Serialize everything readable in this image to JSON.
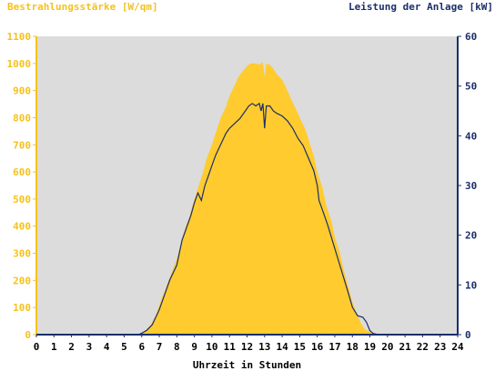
{
  "chart_data": {
    "type": "area",
    "left_axis_label": "Bestrahlungsstärke [W/qm]",
    "right_axis_label": "Leistung der Anlage [kW]",
    "xlabel": "Uhrzeit in Stunden",
    "x_ticks": [
      "0",
      "1",
      "2",
      "3",
      "4",
      "5",
      "6",
      "7",
      "8",
      "9",
      "10",
      "11",
      "12",
      "13",
      "14",
      "15",
      "16",
      "17",
      "18",
      "19",
      "20",
      "21",
      "22",
      "23",
      "24"
    ],
    "y_left_ticks": [
      "0",
      "100",
      "200",
      "300",
      "400",
      "500",
      "600",
      "700",
      "800",
      "900",
      "1000",
      "1100"
    ],
    "y_right_ticks": [
      "0",
      "10",
      "20",
      "30",
      "40",
      "50",
      "60"
    ],
    "xlim": [
      0,
      24
    ],
    "ylim_left": [
      0,
      1100
    ],
    "ylim_right": [
      0,
      60
    ],
    "colors": {
      "irradiance": "#ffcb2f",
      "power": "#1a2f6b",
      "plot_bg": "#dcdcdc",
      "left_axis": "#f5c21c",
      "right_axis": "#1a2f6b"
    },
    "series": [
      {
        "unit": "W/qm",
        "axis": "left",
        "x": [
          0,
          5.8,
          6.0,
          6.2,
          6.5,
          6.8,
          7.0,
          7.3,
          7.6,
          8.0,
          8.3,
          8.5,
          8.7,
          9.0,
          9.2,
          9.5,
          9.7,
          10.0,
          10.3,
          10.5,
          10.8,
          11.0,
          11.3,
          11.5,
          11.8,
          12.0,
          12.2,
          12.5,
          12.7,
          12.9,
          13.0,
          13.1,
          13.3,
          13.5,
          13.7,
          14.0,
          14.3,
          14.5,
          14.8,
          15.0,
          15.3,
          15.5,
          15.8,
          16.0,
          16.3,
          16.5,
          16.8,
          17.0,
          17.3,
          17.5,
          17.8,
          18.0,
          18.3,
          18.5,
          18.7,
          19.0,
          19.2,
          19.5,
          19.8,
          20.0,
          24
        ],
        "values": [
          0,
          0,
          5,
          15,
          35,
          70,
          110,
          160,
          210,
          280,
          350,
          400,
          430,
          500,
          540,
          600,
          650,
          700,
          760,
          800,
          840,
          880,
          920,
          950,
          975,
          990,
          1000,
          1000,
          995,
          1005,
          950,
          1000,
          995,
          980,
          960,
          940,
          900,
          870,
          830,
          800,
          760,
          720,
          660,
          600,
          540,
          480,
          420,
          360,
          300,
          240,
          170,
          120,
          70,
          40,
          20,
          10,
          4,
          2,
          0,
          0,
          0
        ]
      },
      {
        "unit": "kW",
        "axis": "right",
        "x": [
          0,
          5.8,
          6.0,
          6.3,
          6.6,
          7.0,
          7.3,
          7.6,
          8.0,
          8.3,
          8.5,
          8.8,
          9.0,
          9.2,
          9.4,
          9.6,
          9.8,
          10.0,
          10.2,
          10.4,
          10.6,
          10.8,
          11.0,
          11.3,
          11.6,
          11.9,
          12.1,
          12.3,
          12.5,
          12.7,
          12.8,
          12.9,
          13.0,
          13.1,
          13.3,
          13.5,
          13.7,
          14.0,
          14.3,
          14.6,
          14.9,
          15.2,
          15.5,
          15.8,
          16.0,
          16.1,
          16.3,
          16.6,
          16.9,
          17.2,
          17.5,
          17.8,
          18.0,
          18.3,
          18.6,
          18.8,
          19.0,
          19.2,
          19.5,
          20.0,
          24
        ],
        "values": [
          0,
          0,
          0.3,
          0.9,
          2,
          5,
          8,
          11,
          14,
          19,
          21,
          24,
          26.5,
          28.5,
          27,
          30,
          32,
          34,
          36,
          37.5,
          39,
          40.5,
          41.5,
          42.5,
          43.5,
          45,
          46,
          46.5,
          46,
          46.5,
          45,
          46.5,
          41.5,
          46,
          46,
          45,
          44.5,
          44,
          43,
          41.5,
          39.5,
          38,
          35.5,
          33,
          30,
          27,
          25,
          22,
          18.5,
          15,
          11.5,
          8,
          5.5,
          3.8,
          3.5,
          2.5,
          0.8,
          0.2,
          0,
          0,
          0
        ]
      }
    ]
  }
}
